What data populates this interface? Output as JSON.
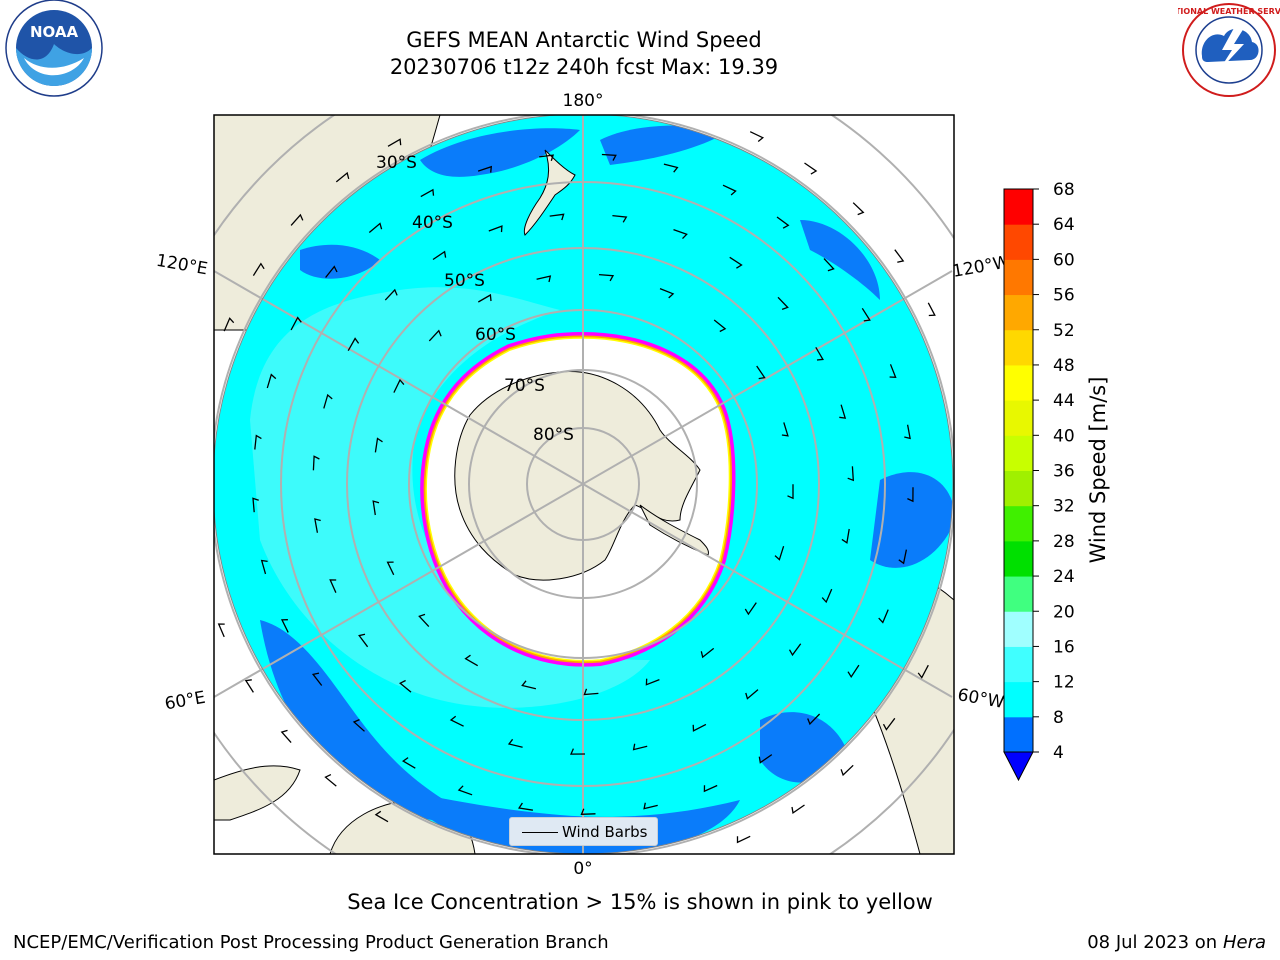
{
  "title": {
    "line1": "GEFS MEAN Antarctic Wind Speed",
    "line2": "20230706 t12z 240h fcst   Max: 19.39"
  },
  "logos": {
    "left": {
      "name": "noaa-logo",
      "text": "NOAA"
    },
    "right": {
      "name": "nws-logo",
      "text": "NATIONAL WEATHER SERVICE"
    }
  },
  "map": {
    "projection": "south-polar-stereographic",
    "longitude_labels": {
      "top": "180°",
      "bottom": "0°",
      "upper_left": "120°E",
      "upper_right": "120°W",
      "lower_left": "60°E",
      "lower_right": "60°W"
    },
    "latitude_labels": [
      "30°S",
      "40°S",
      "50°S",
      "60°S",
      "70°S",
      "80°S"
    ],
    "legend_label": "Wind Barbs",
    "colors": {
      "land": "#eeecdb",
      "sea_ice_interior": "#ffffff",
      "sea_ice_edge": [
        "#ff00ff",
        "#ffa500",
        "#ffff00"
      ],
      "wind_4_8": "#0a7cfa",
      "wind_8_12": "#00ffff",
      "wind_12_16": "#3dfbfb"
    }
  },
  "colorbar": {
    "title": "Wind Speed [m/s]",
    "ticks": [
      "4",
      "8",
      "12",
      "16",
      "20",
      "24",
      "28",
      "32",
      "36",
      "40",
      "44",
      "48",
      "52",
      "56",
      "60",
      "64",
      "68"
    ],
    "colors": [
      "#0070ff",
      "#00ffff",
      "#40ffff",
      "#a0ffff",
      "#40ff80",
      "#00e000",
      "#40f000",
      "#a0f000",
      "#c8ff00",
      "#e8f800",
      "#ffff00",
      "#ffd800",
      "#ffa800",
      "#ff7800",
      "#ff4800",
      "#ff0000"
    ],
    "under_color": "#0000ff"
  },
  "caption": "Sea Ice Concentration > 15% is shown in pink to yellow",
  "footer": {
    "left": "NCEP/EMC/Verification Post Processing Product Generation Branch",
    "right_date": "08 Jul 2023 on ",
    "right_host": "Hera"
  }
}
